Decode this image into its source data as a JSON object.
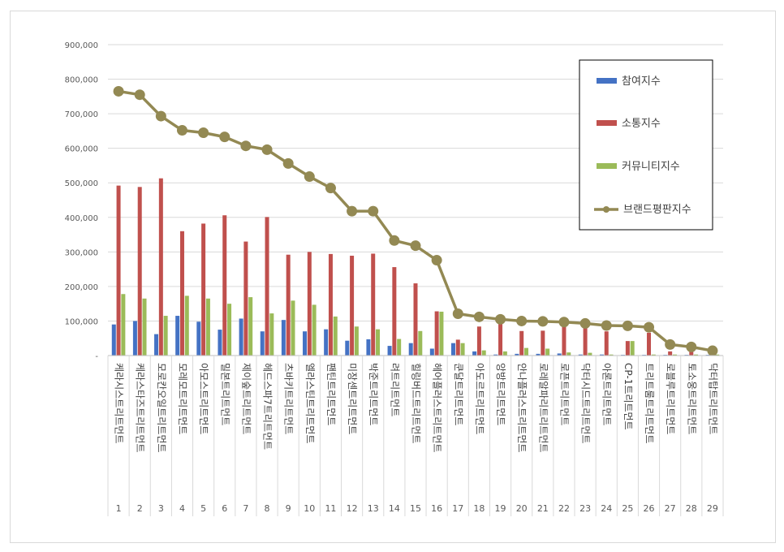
{
  "chart_data": {
    "type": "bar",
    "categories": [
      "케라시스트리트먼트",
      "케라스타즈트리트먼트",
      "모로칸오일트리트먼트",
      "모레모트리트먼트",
      "아모스트리트먼트",
      "밀본트리트먼트",
      "제이숲트리트먼트",
      "헤드스파7트리트먼트",
      "츠바키트리트먼트",
      "엘라스틴트리트먼트",
      "팬틴트리트먼트",
      "미장센트리트먼트",
      "박준트리트먼트",
      "려트리트먼트",
      "힐링버드트리트먼트",
      "헤어플러스트리트먼트",
      "쿤달트리트먼트",
      "아도르트리트먼트",
      "앙방트리트먼트",
      "안나플러스트리트먼트",
      "로레알파리트리트먼트",
      "로픈트리트먼트",
      "닥터시드트리트먼트",
      "아론트리트먼트",
      "CP-1트리트먼트",
      "트리트룸트리트먼트",
      "로블루트리트먼트",
      "토소웅트리트먼트",
      "닥터탑트리트먼트"
    ],
    "ranks": [
      "1",
      "2",
      "3",
      "4",
      "5",
      "6",
      "7",
      "8",
      "9",
      "10",
      "11",
      "12",
      "13",
      "14",
      "15",
      "16",
      "17",
      "18",
      "19",
      "20",
      "21",
      "22",
      "23",
      "24",
      "25",
      "26",
      "27",
      "28",
      "29"
    ],
    "series": [
      {
        "name": "참여지수",
        "type": "bar",
        "color": "#4472c4",
        "values": [
          90000,
          100000,
          62000,
          115000,
          98000,
          75000,
          107000,
          70000,
          103000,
          70000,
          76000,
          43000,
          47000,
          28000,
          36000,
          20000,
          36000,
          12000,
          3000,
          5000,
          5000,
          6000,
          3000,
          3000,
          2000,
          2000,
          2000,
          2000,
          2000
        ]
      },
      {
        "name": "소통지수",
        "type": "bar",
        "color": "#c0504d",
        "values": [
          492000,
          488000,
          513000,
          360000,
          382000,
          406000,
          330000,
          401000,
          292000,
          300000,
          294000,
          289000,
          295000,
          256000,
          209000,
          128000,
          46000,
          84000,
          97000,
          71000,
          72000,
          88000,
          84000,
          70000,
          42000,
          66000,
          12000,
          15000,
          5000
        ]
      },
      {
        "name": "커뮤니티지수",
        "type": "bar",
        "color": "#9bbb59",
        "values": [
          178000,
          165000,
          115000,
          173000,
          165000,
          150000,
          169000,
          122000,
          159000,
          147000,
          113000,
          84000,
          76000,
          48000,
          71000,
          127000,
          36000,
          15000,
          12000,
          22000,
          20000,
          9000,
          8000,
          3000,
          42000,
          3000,
          3000,
          3000,
          3000
        ]
      },
      {
        "name": "브랜드평판지수",
        "type": "line",
        "color": "#938953",
        "values": [
          765000,
          755000,
          693000,
          652000,
          645000,
          633000,
          607000,
          596000,
          556000,
          518000,
          485000,
          418000,
          418000,
          333000,
          318000,
          276000,
          121000,
          112000,
          105000,
          100000,
          99000,
          97000,
          93000,
          87000,
          86000,
          82000,
          32000,
          25000,
          14000
        ]
      }
    ],
    "yticks": [
      "900,000",
      "800,000",
      "700,000",
      "600,000",
      "500,000",
      "400,000",
      "300,000",
      "200,000",
      "100,000",
      "-"
    ],
    "ylim": [
      0,
      900000
    ],
    "grid": true,
    "legend": "top-right"
  }
}
